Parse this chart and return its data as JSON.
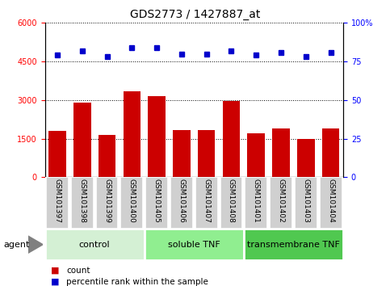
{
  "title": "GDS2773 / 1427887_at",
  "samples": [
    "GSM101397",
    "GSM101398",
    "GSM101399",
    "GSM101400",
    "GSM101405",
    "GSM101406",
    "GSM101407",
    "GSM101408",
    "GSM101401",
    "GSM101402",
    "GSM101403",
    "GSM101404"
  ],
  "counts": [
    1800,
    2900,
    1650,
    3350,
    3150,
    1850,
    1850,
    2950,
    1700,
    1900,
    1500,
    1900
  ],
  "percentiles": [
    79,
    82,
    78,
    84,
    84,
    80,
    80,
    82,
    79,
    81,
    78,
    81
  ],
  "groups": [
    {
      "label": "control",
      "start": 0,
      "end": 4,
      "color": "#d4f0d4"
    },
    {
      "label": "soluble TNF",
      "start": 4,
      "end": 8,
      "color": "#90ee90"
    },
    {
      "label": "transmembrane TNF",
      "start": 8,
      "end": 12,
      "color": "#50c850"
    }
  ],
  "bar_color": "#cc0000",
  "dot_color": "#0000cc",
  "ylim_left": [
    0,
    6000
  ],
  "ylim_right": [
    0,
    100
  ],
  "yticks_left": [
    0,
    1500,
    3000,
    4500,
    6000
  ],
  "yticks_right": [
    0,
    25,
    50,
    75,
    100
  ],
  "agent_label": "agent",
  "legend_items": [
    {
      "color": "#cc0000",
      "label": "count"
    },
    {
      "color": "#0000cc",
      "label": "percentile rank within the sample"
    }
  ],
  "tick_label_area_color": "#d0d0d0",
  "title_fontsize": 10,
  "tick_fontsize": 7,
  "sample_fontsize": 6.5
}
